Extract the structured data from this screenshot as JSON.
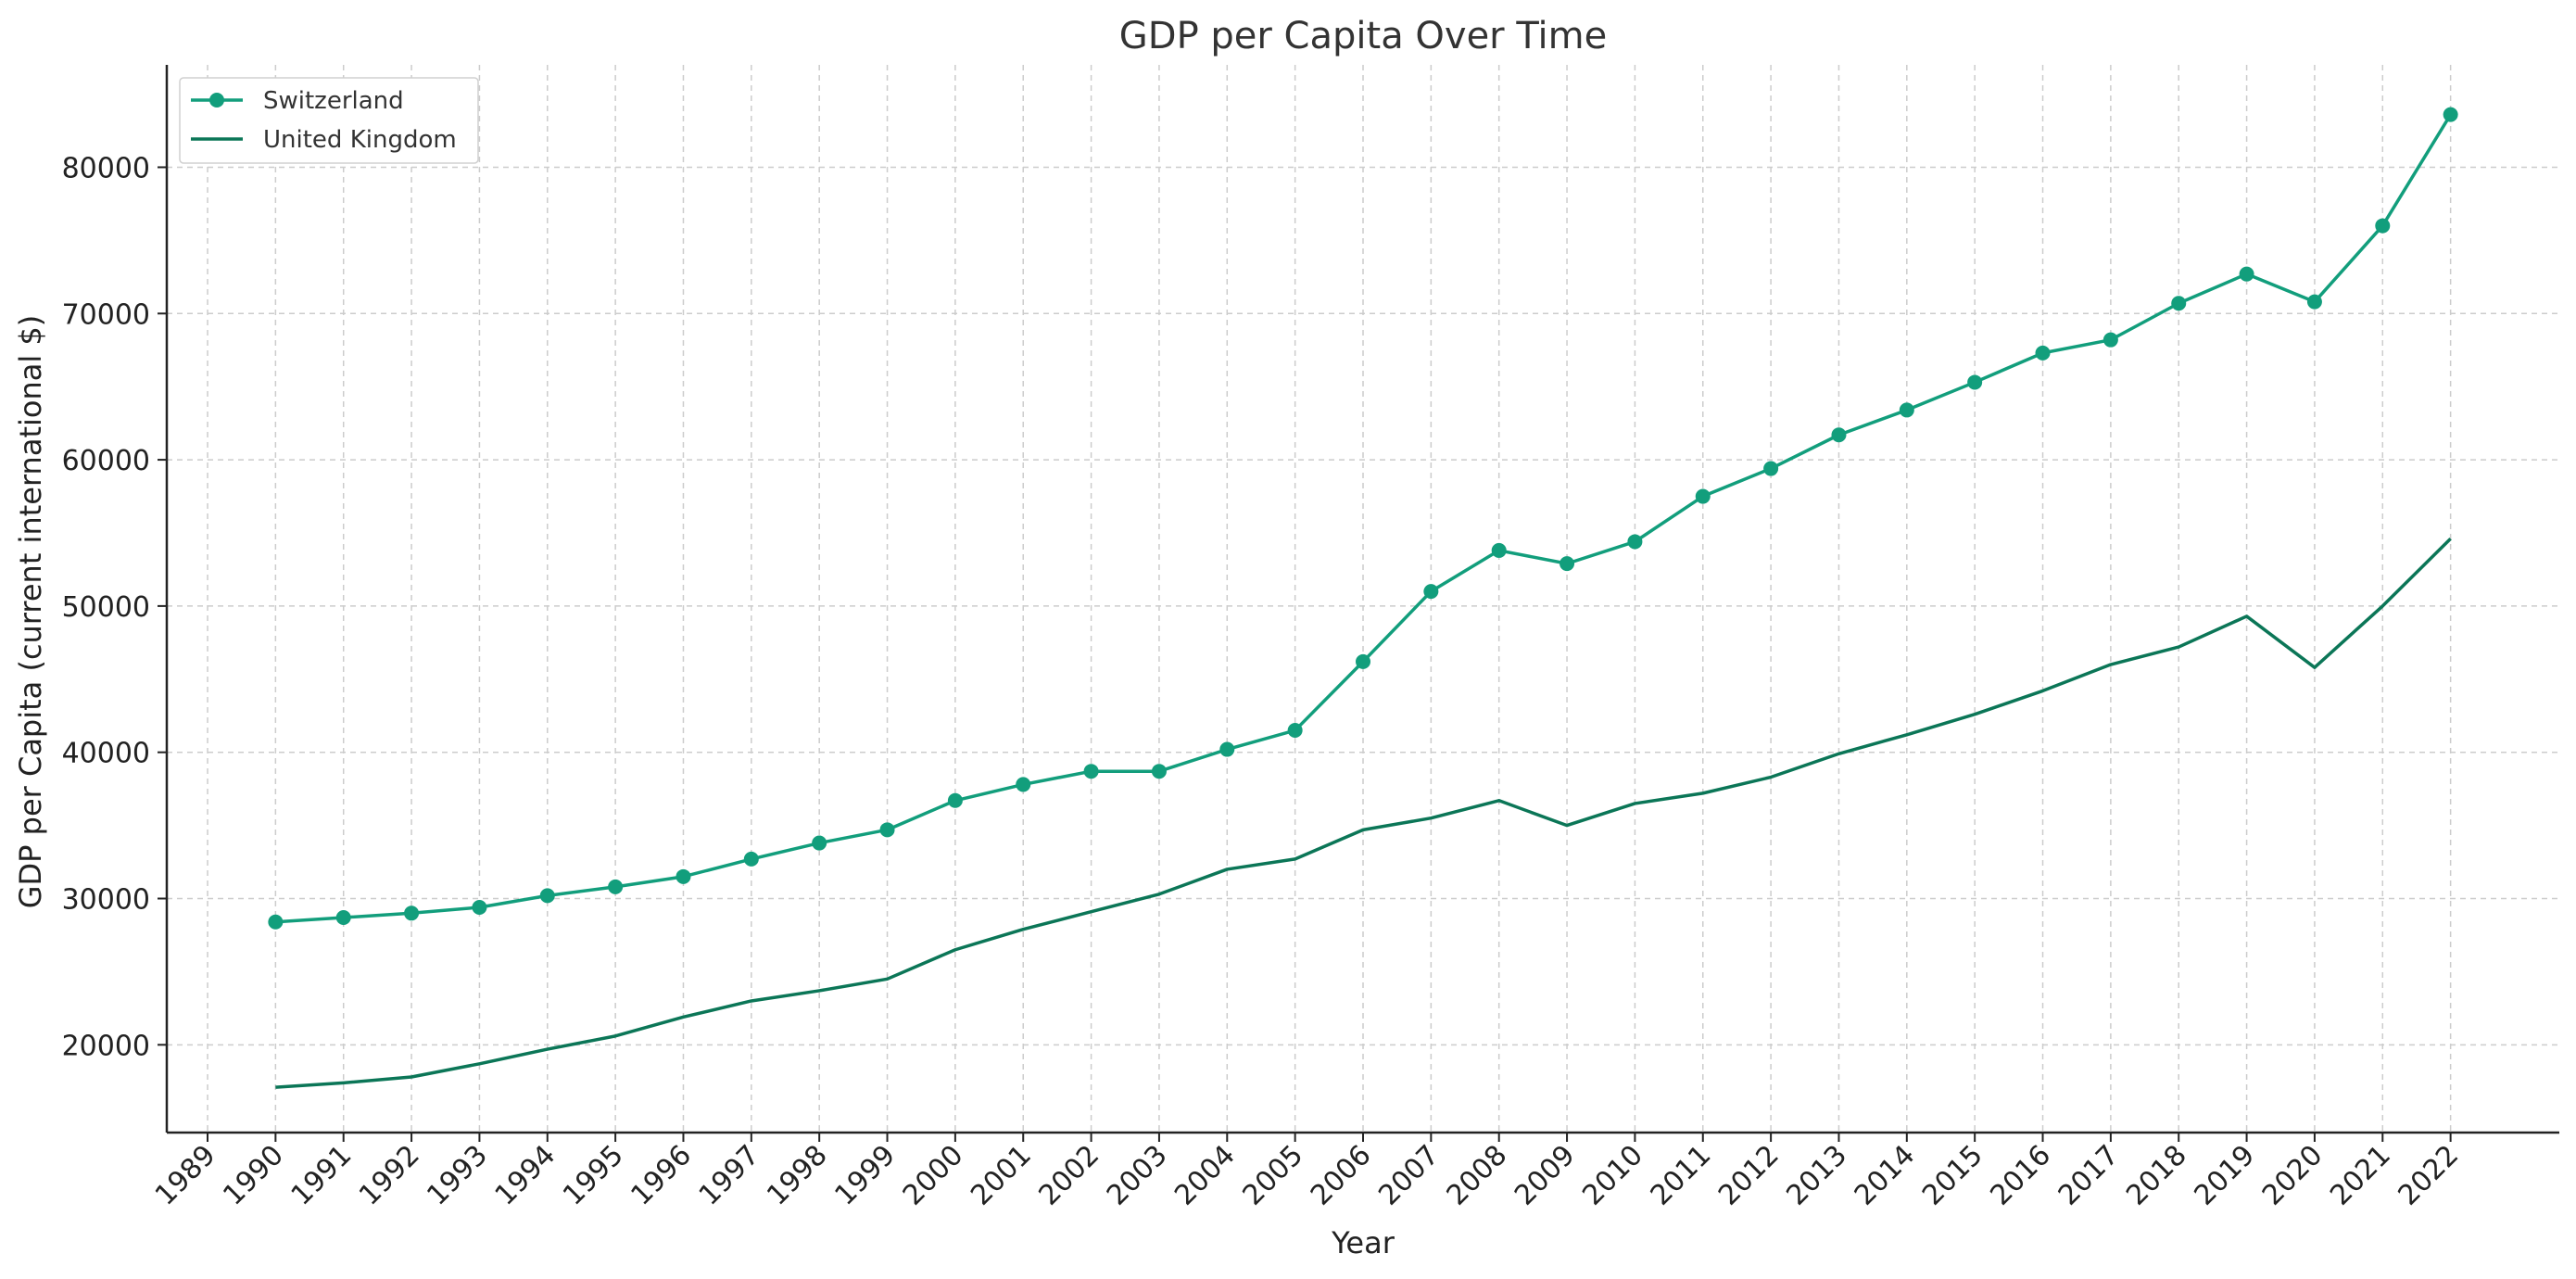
{
  "chart_data": {
    "type": "line",
    "title": "GDP per Capita Over Time",
    "xlabel": "Year",
    "ylabel": "GDP per Capita (current international $)",
    "x_ticks": [
      1989,
      1990,
      1991,
      1992,
      1993,
      1994,
      1995,
      1996,
      1997,
      1998,
      1999,
      2000,
      2001,
      2002,
      2003,
      2004,
      2005,
      2006,
      2007,
      2008,
      2009,
      2010,
      2011,
      2012,
      2013,
      2014,
      2015,
      2016,
      2017,
      2018,
      2019,
      2020,
      2021,
      2022
    ],
    "y_ticks": [
      20000,
      30000,
      40000,
      50000,
      60000,
      70000,
      80000
    ],
    "xlim": [
      1988.4,
      2023.6
    ],
    "ylim": [
      14000,
      87000
    ],
    "grid": true,
    "legend_position": "top-left",
    "x": [
      1990,
      1991,
      1992,
      1993,
      1994,
      1995,
      1996,
      1997,
      1998,
      1999,
      2000,
      2001,
      2002,
      2003,
      2004,
      2005,
      2006,
      2007,
      2008,
      2009,
      2010,
      2011,
      2012,
      2013,
      2014,
      2015,
      2016,
      2017,
      2018,
      2019,
      2020,
      2021,
      2022
    ],
    "series": [
      {
        "name": "Switzerland",
        "color": "#129e7c",
        "marker": "circle",
        "values": [
          28400,
          28700,
          29000,
          29400,
          30200,
          30800,
          31500,
          32700,
          33800,
          34700,
          36700,
          37800,
          38700,
          38700,
          40200,
          41500,
          46200,
          51000,
          53800,
          52900,
          54400,
          57500,
          59400,
          61700,
          63400,
          65300,
          67300,
          68200,
          70700,
          72700,
          70800,
          76000,
          83600
        ]
      },
      {
        "name": "United Kingdom",
        "color": "#0b7657",
        "marker": "none",
        "values": [
          17100,
          17400,
          17800,
          18700,
          19700,
          20600,
          21900,
          23000,
          23700,
          24500,
          26500,
          27900,
          29100,
          30300,
          32000,
          32700,
          34700,
          35500,
          36700,
          35000,
          36500,
          37200,
          38300,
          39900,
          41200,
          42600,
          44200,
          46000,
          47200,
          49300,
          45800,
          50000,
          54600
        ]
      }
    ]
  }
}
